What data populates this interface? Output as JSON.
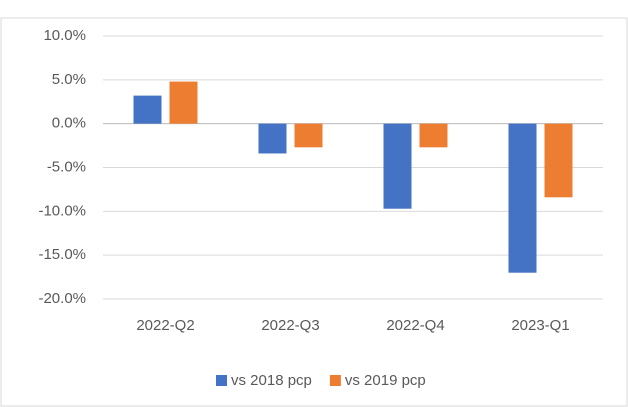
{
  "chart_data": {
    "type": "bar",
    "categories": [
      "2022-Q2",
      "2022-Q3",
      "2022-Q4",
      "2023-Q1"
    ],
    "series": [
      {
        "name": "vs 2018 pcp",
        "color": "#4472c4",
        "values": [
          3.2,
          -3.4,
          -9.7,
          -17.0
        ]
      },
      {
        "name": "vs 2019 pcp",
        "color": "#ed7d31",
        "values": [
          4.8,
          -2.7,
          -2.7,
          -8.4
        ]
      }
    ],
    "ylim": [
      -20,
      10
    ],
    "yticks": [
      {
        "value": 10,
        "label": "10.0%"
      },
      {
        "value": 5,
        "label": "5.0%"
      },
      {
        "value": 0,
        "label": "0.0%"
      },
      {
        "value": -5,
        "label": "-5.0%"
      },
      {
        "value": -10,
        "label": "-10.0%"
      },
      {
        "value": -15,
        "label": "-15.0%"
      },
      {
        "value": -20,
        "label": "-20.0%"
      }
    ],
    "grid": true,
    "legend": "bottom"
  }
}
